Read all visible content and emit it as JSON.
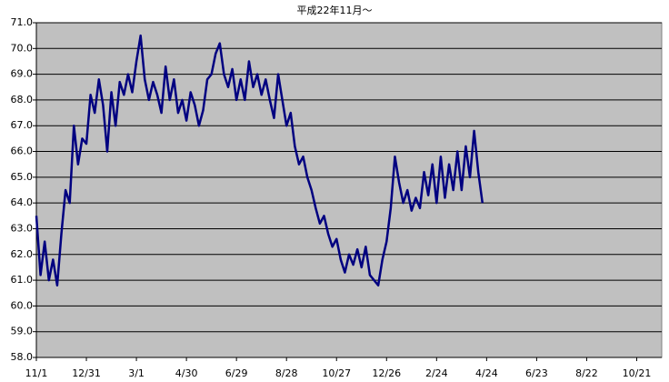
{
  "chart_data": {
    "type": "line",
    "title": "平成22年11月～",
    "categories": [
      "11/1",
      null,
      null,
      null,
      null,
      null,
      null,
      null,
      null,
      null,
      null,
      null,
      "12/31",
      null,
      null,
      null,
      null,
      null,
      null,
      null,
      null,
      null,
      null,
      null,
      "3/1",
      null,
      null,
      null,
      null,
      null,
      null,
      null,
      null,
      null,
      null,
      null,
      "4/30",
      null,
      null,
      null,
      null,
      null,
      null,
      null,
      null,
      null,
      null,
      null,
      "6/29",
      null,
      null,
      null,
      null,
      null,
      null,
      null,
      null,
      null,
      null,
      null,
      "8/28",
      null,
      null,
      null,
      null,
      null,
      null,
      null,
      null,
      null,
      null,
      null,
      "10/27",
      null,
      null,
      null,
      null,
      null,
      null,
      null,
      null,
      null,
      null,
      null,
      "12/26",
      null,
      null,
      null,
      null,
      null,
      null,
      null,
      null,
      null,
      null,
      null,
      "2/24",
      null,
      null,
      null,
      null,
      null,
      null,
      null,
      null,
      null,
      null,
      null,
      "4/24",
      null,
      null,
      null,
      null,
      null,
      null,
      null,
      null,
      null,
      null,
      null,
      "6/23",
      null,
      null,
      null,
      null,
      null,
      null,
      null,
      null,
      null,
      null,
      null,
      "8/22",
      null,
      null,
      null,
      null,
      null,
      null,
      null,
      null,
      null,
      null,
      null,
      "10/21",
      null,
      null,
      null,
      null,
      null
    ],
    "values": [
      63.5,
      61.2,
      62.5,
      61.0,
      61.8,
      60.8,
      62.8,
      64.5,
      64.0,
      67.0,
      65.5,
      66.5,
      66.3,
      68.2,
      67.5,
      68.8,
      67.8,
      66.0,
      68.3,
      67.0,
      68.7,
      68.2,
      69.0,
      68.3,
      69.5,
      70.5,
      68.8,
      68.0,
      68.7,
      68.2,
      67.5,
      69.3,
      68.0,
      68.8,
      67.5,
      68.0,
      67.2,
      68.3,
      67.8,
      67.0,
      67.6,
      68.8,
      69.0,
      69.8,
      70.2,
      69.0,
      68.5,
      69.2,
      68.0,
      68.8,
      68.0,
      69.5,
      68.5,
      69.0,
      68.2,
      68.8,
      68.0,
      67.3,
      69.0,
      68.0,
      67.0,
      67.5,
      66.2,
      65.5,
      65.8,
      65.0,
      64.5,
      63.8,
      63.2,
      63.5,
      62.8,
      62.3,
      62.6,
      61.8,
      61.3,
      62.0,
      61.6,
      62.2,
      61.5,
      62.3,
      61.2,
      61.0,
      60.8,
      61.8,
      62.5,
      63.8,
      65.8,
      64.8,
      64.0,
      64.5,
      63.7,
      64.2,
      63.8,
      65.2,
      64.3,
      65.5,
      64.0,
      65.8,
      64.2,
      65.5,
      64.5,
      66.0,
      64.5,
      66.2,
      65.0,
      66.8,
      65.2,
      64.0,
      null,
      null,
      null,
      null,
      null,
      null,
      null,
      null,
      null,
      null,
      null,
      null,
      null,
      null,
      null,
      null,
      null,
      null,
      null,
      null,
      null,
      null,
      null,
      null,
      null,
      null,
      null,
      null,
      null,
      null,
      null,
      null,
      null,
      null,
      null,
      null,
      null,
      null,
      null,
      null,
      null,
      null
    ],
    "color": "#000080",
    "ylim": [
      58,
      71
    ],
    "yticks": [
      {
        "value": 58,
        "label": "58.0"
      },
      {
        "value": 59,
        "label": "59.0"
      },
      {
        "value": 60,
        "label": "60.0"
      },
      {
        "value": 61,
        "label": "61.0"
      },
      {
        "value": 62,
        "label": "62.0"
      },
      {
        "value": 63,
        "label": "63.0"
      },
      {
        "value": 64,
        "label": "64.0"
      },
      {
        "value": 65,
        "label": "65.0"
      },
      {
        "value": 66,
        "label": "66.0"
      },
      {
        "value": 67,
        "label": "67.0"
      },
      {
        "value": 68,
        "label": "68.0"
      },
      {
        "value": 69,
        "label": "69.0"
      },
      {
        "value": 70,
        "label": "70.0"
      },
      {
        "value": 71,
        "label": "71.0"
      }
    ],
    "grid": true
  }
}
